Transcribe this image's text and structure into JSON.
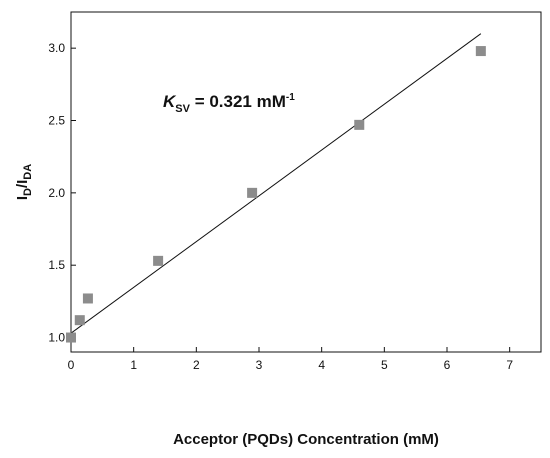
{
  "chart_data": {
    "type": "scatter",
    "xlabel": "Acceptor (PQDs) Concentration (mM)",
    "ylabel": {
      "main": "I",
      "sub1": "D",
      "slash": "/I",
      "sub2": "DA"
    },
    "xlim": [
      0,
      7.5
    ],
    "ylim": [
      0.9,
      3.25
    ],
    "x_ticks": [
      0,
      1,
      2,
      3,
      4,
      5,
      6,
      7
    ],
    "y_ticks": [
      1.0,
      1.5,
      2.0,
      2.5,
      3.0
    ],
    "grid": false,
    "legend": "none",
    "series": [
      {
        "marker": "square",
        "color": "#8c8c8c",
        "points": [
          {
            "x": 0.0,
            "y": 1.0
          },
          {
            "x": 0.14,
            "y": 1.12
          },
          {
            "x": 0.27,
            "y": 1.27
          },
          {
            "x": 1.39,
            "y": 1.53
          },
          {
            "x": 2.89,
            "y": 2.0
          },
          {
            "x": 4.6,
            "y": 2.47
          },
          {
            "x": 6.54,
            "y": 2.98
          }
        ]
      }
    ],
    "fit_line": {
      "color": "#111111",
      "x": [
        0,
        6.54
      ],
      "y": [
        1.03,
        3.1
      ]
    },
    "annotation": {
      "k": "K",
      "sub": "SV",
      "text": " = 0.321 mM",
      "sup": "-1"
    }
  }
}
